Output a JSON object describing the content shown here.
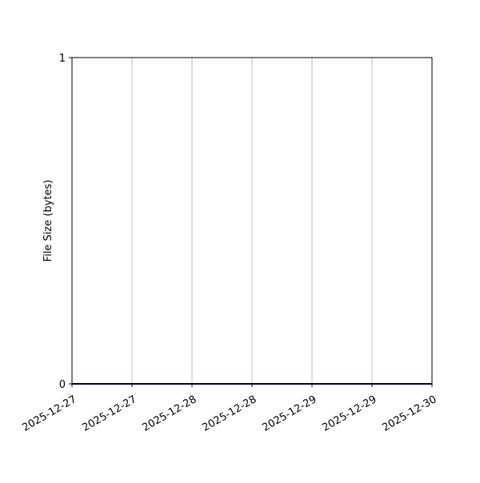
{
  "chart_data": {
    "type": "line",
    "title": "",
    "xlabel": "",
    "ylabel": "File Size (bytes)",
    "xlim": [
      "2025-12-27T00:00",
      "2025-12-30T00:00"
    ],
    "ylim": [
      0,
      1
    ],
    "x_ticks": [
      "2025-12-27T00:00",
      "2025-12-27T12:00",
      "2025-12-28T00:00",
      "2025-12-28T12:00",
      "2025-12-29T00:00",
      "2025-12-29T12:00",
      "2025-12-30T00:00"
    ],
    "x_tick_labels": [
      "2025-12-27",
      "2025-12-27",
      "2025-12-28",
      "2025-12-28",
      "2025-12-29",
      "2025-12-29",
      "2025-12-30"
    ],
    "y_ticks": [
      0,
      1
    ],
    "y_tick_labels": [
      "0",
      "1"
    ],
    "grid": "x-only",
    "series": [
      {
        "color": "#00008b",
        "x": [
          "2025-12-27T00:00",
          "2025-12-30T00:00"
        ],
        "y": [
          0,
          0
        ]
      }
    ]
  }
}
